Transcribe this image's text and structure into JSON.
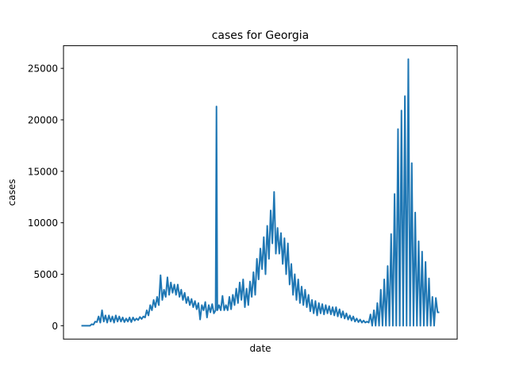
{
  "chart_data": {
    "type": "line",
    "title": "cases for Georgia",
    "xlabel": "date",
    "ylabel": "cases",
    "ylim": [
      -1300,
      27200
    ],
    "yticks": [
      0,
      5000,
      10000,
      15000,
      20000,
      25000
    ],
    "ytick_labels": [
      "0",
      "5000",
      "10000",
      "15000",
      "20000",
      "25000"
    ],
    "x_ticks_shown": false,
    "grid": false,
    "color": "#1f77b4",
    "series": [
      {
        "name": "",
        "points": [
          [
            0,
            0
          ],
          [
            10,
            0
          ],
          [
            12,
            150
          ],
          [
            14,
            100
          ],
          [
            16,
            400
          ],
          [
            18,
            350
          ],
          [
            20,
            900
          ],
          [
            22,
            300
          ],
          [
            24,
            1500
          ],
          [
            26,
            400
          ],
          [
            28,
            1000
          ],
          [
            30,
            300
          ],
          [
            32,
            1000
          ],
          [
            34,
            400
          ],
          [
            36,
            900
          ],
          [
            38,
            300
          ],
          [
            40,
            1000
          ],
          [
            42,
            400
          ],
          [
            44,
            900
          ],
          [
            46,
            400
          ],
          [
            48,
            800
          ],
          [
            50,
            350
          ],
          [
            52,
            700
          ],
          [
            54,
            400
          ],
          [
            56,
            800
          ],
          [
            58,
            350
          ],
          [
            60,
            800
          ],
          [
            62,
            500
          ],
          [
            64,
            700
          ],
          [
            66,
            550
          ],
          [
            68,
            850
          ],
          [
            70,
            650
          ],
          [
            72,
            900
          ],
          [
            74,
            800
          ],
          [
            76,
            1500
          ],
          [
            78,
            1000
          ],
          [
            80,
            2000
          ],
          [
            82,
            1500
          ],
          [
            84,
            2500
          ],
          [
            86,
            1800
          ],
          [
            88,
            2800
          ],
          [
            90,
            2000
          ],
          [
            92,
            4900
          ],
          [
            94,
            2500
          ],
          [
            96,
            3500
          ],
          [
            98,
            2800
          ],
          [
            100,
            4700
          ],
          [
            102,
            3000
          ],
          [
            104,
            4200
          ],
          [
            106,
            3200
          ],
          [
            108,
            4000
          ],
          [
            110,
            3000
          ],
          [
            112,
            4000
          ],
          [
            114,
            2800
          ],
          [
            116,
            3500
          ],
          [
            118,
            2500
          ],
          [
            120,
            3200
          ],
          [
            122,
            2200
          ],
          [
            124,
            2800
          ],
          [
            126,
            2000
          ],
          [
            128,
            2600
          ],
          [
            130,
            1800
          ],
          [
            132,
            2400
          ],
          [
            134,
            1600
          ],
          [
            136,
            2200
          ],
          [
            138,
            600
          ],
          [
            140,
            2000
          ],
          [
            142,
            1500
          ],
          [
            144,
            2300
          ],
          [
            146,
            800
          ],
          [
            148,
            2000
          ],
          [
            150,
            1300
          ],
          [
            152,
            2100
          ],
          [
            154,
            1200
          ],
          [
            156,
            1500
          ],
          [
            157,
            21300
          ],
          [
            158,
            1500
          ],
          [
            160,
            2000
          ],
          [
            162,
            1500
          ],
          [
            164,
            2900
          ],
          [
            166,
            1500
          ],
          [
            168,
            2000
          ],
          [
            170,
            1500
          ],
          [
            172,
            2800
          ],
          [
            174,
            1600
          ],
          [
            176,
            3000
          ],
          [
            178,
            2000
          ],
          [
            180,
            3600
          ],
          [
            182,
            2200
          ],
          [
            184,
            4200
          ],
          [
            186,
            2500
          ],
          [
            188,
            4500
          ],
          [
            190,
            1800
          ],
          [
            192,
            3600
          ],
          [
            194,
            2000
          ],
          [
            196,
            4300
          ],
          [
            198,
            2800
          ],
          [
            200,
            5200
          ],
          [
            202,
            3000
          ],
          [
            204,
            6500
          ],
          [
            206,
            4500
          ],
          [
            208,
            7500
          ],
          [
            210,
            5500
          ],
          [
            212,
            8600
          ],
          [
            214,
            5000
          ],
          [
            216,
            9700
          ],
          [
            218,
            6500
          ],
          [
            220,
            11200
          ],
          [
            222,
            8000
          ],
          [
            224,
            13000
          ],
          [
            226,
            7000
          ],
          [
            228,
            9500
          ],
          [
            230,
            7000
          ],
          [
            232,
            9000
          ],
          [
            234,
            6000
          ],
          [
            236,
            8500
          ],
          [
            238,
            5000
          ],
          [
            240,
            8000
          ],
          [
            242,
            4000
          ],
          [
            244,
            6000
          ],
          [
            246,
            3000
          ],
          [
            248,
            5000
          ],
          [
            250,
            2500
          ],
          [
            252,
            4500
          ],
          [
            254,
            2200
          ],
          [
            256,
            3800
          ],
          [
            258,
            2000
          ],
          [
            260,
            3500
          ],
          [
            262,
            1800
          ],
          [
            264,
            3000
          ],
          [
            266,
            1400
          ],
          [
            268,
            2500
          ],
          [
            270,
            1200
          ],
          [
            272,
            2400
          ],
          [
            274,
            1000
          ],
          [
            276,
            2200
          ],
          [
            278,
            1200
          ],
          [
            280,
            2100
          ],
          [
            282,
            1100
          ],
          [
            284,
            2000
          ],
          [
            286,
            1200
          ],
          [
            288,
            1900
          ],
          [
            290,
            1100
          ],
          [
            292,
            1800
          ],
          [
            294,
            1000
          ],
          [
            296,
            1800
          ],
          [
            298,
            900
          ],
          [
            300,
            1600
          ],
          [
            302,
            800
          ],
          [
            304,
            1400
          ],
          [
            306,
            700
          ],
          [
            308,
            1200
          ],
          [
            310,
            600
          ],
          [
            312,
            1000
          ],
          [
            314,
            500
          ],
          [
            316,
            900
          ],
          [
            318,
            400
          ],
          [
            320,
            700
          ],
          [
            322,
            350
          ],
          [
            324,
            600
          ],
          [
            326,
            300
          ],
          [
            328,
            500
          ],
          [
            330,
            300
          ],
          [
            332,
            400
          ],
          [
            334,
            300
          ],
          [
            336,
            1100
          ],
          [
            338,
            0
          ],
          [
            340,
            1500
          ],
          [
            342,
            0
          ],
          [
            344,
            2200
          ],
          [
            346,
            0
          ],
          [
            348,
            3500
          ],
          [
            350,
            0
          ],
          [
            352,
            4500
          ],
          [
            354,
            0
          ],
          [
            356,
            5800
          ],
          [
            358,
            0
          ],
          [
            360,
            8900
          ],
          [
            362,
            0
          ],
          [
            364,
            12800
          ],
          [
            366,
            0
          ],
          [
            368,
            19100
          ],
          [
            370,
            0
          ],
          [
            372,
            20900
          ],
          [
            374,
            0
          ],
          [
            376,
            22300
          ],
          [
            378,
            0
          ],
          [
            380,
            25900
          ],
          [
            382,
            0
          ],
          [
            384,
            15800
          ],
          [
            386,
            0
          ],
          [
            388,
            11000
          ],
          [
            390,
            0
          ],
          [
            392,
            8200
          ],
          [
            394,
            0
          ],
          [
            396,
            7200
          ],
          [
            398,
            0
          ],
          [
            400,
            6200
          ],
          [
            402,
            0
          ],
          [
            404,
            4600
          ],
          [
            406,
            0
          ],
          [
            408,
            2800
          ],
          [
            410,
            0
          ],
          [
            412,
            2700
          ],
          [
            414,
            1300
          ],
          [
            416,
            1300
          ]
        ]
      }
    ]
  }
}
